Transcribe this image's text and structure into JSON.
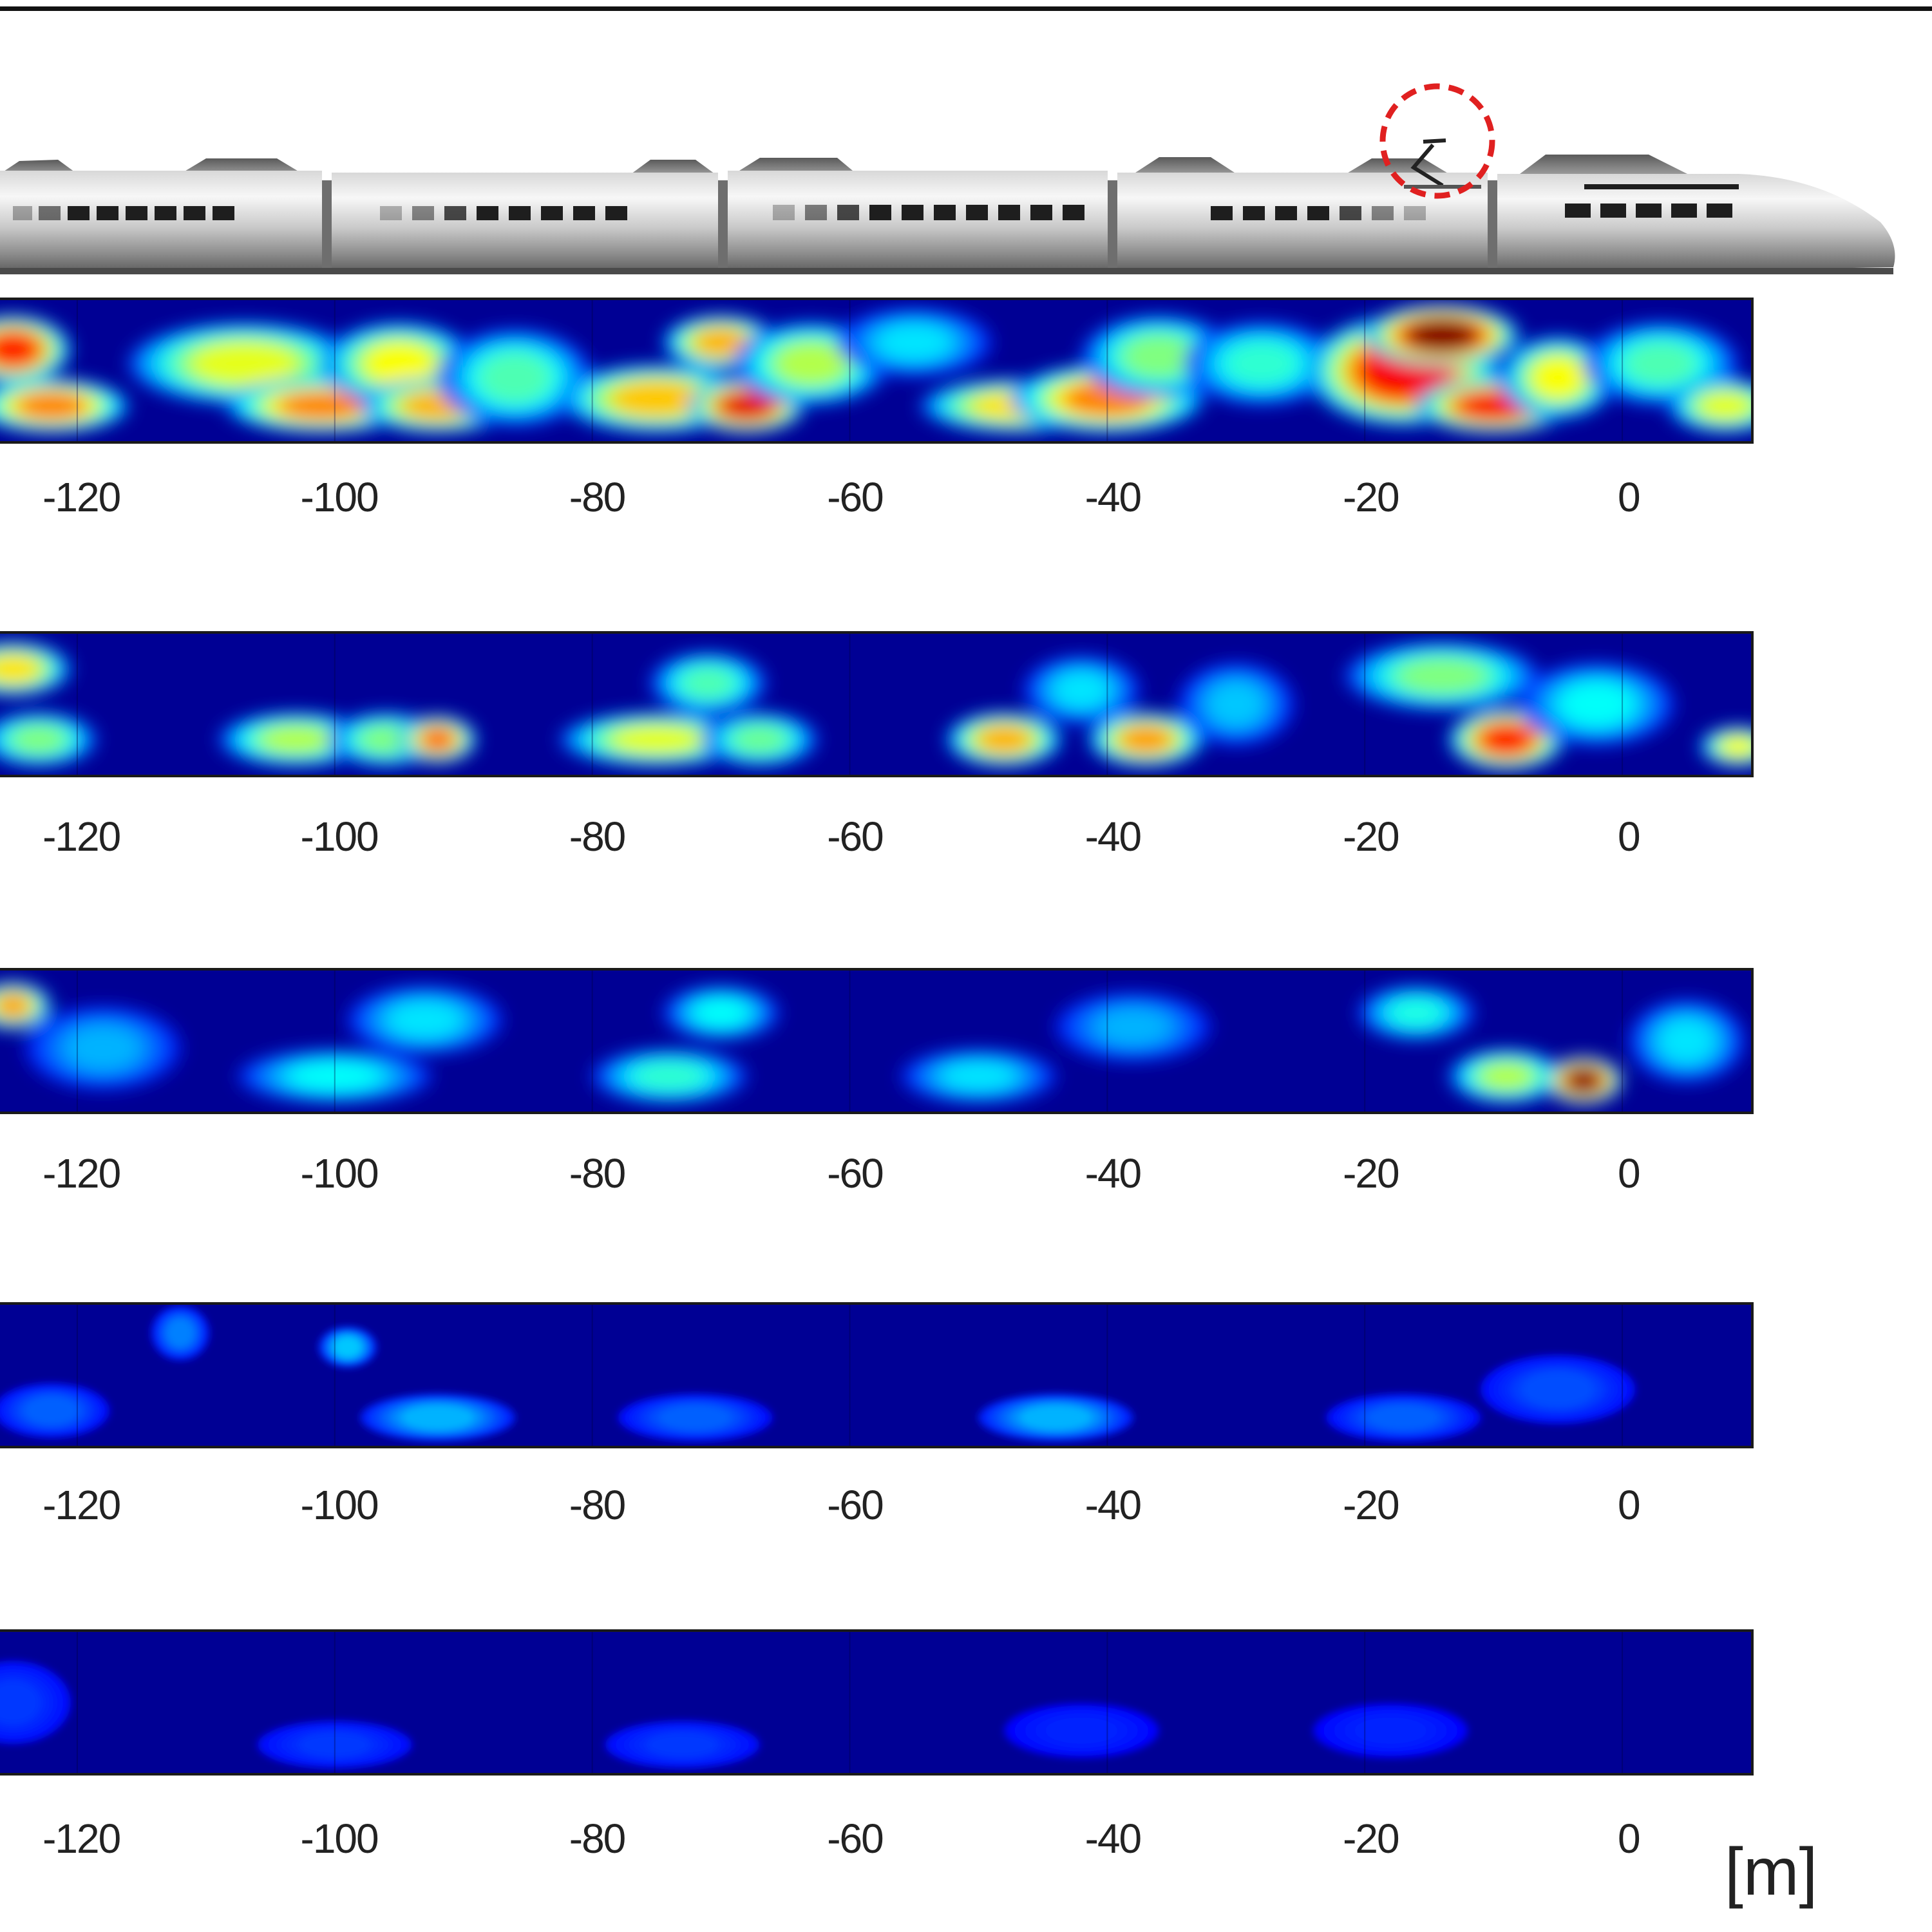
{
  "chart_data": {
    "type": "heatmap",
    "panel_count": 5,
    "x_ticks": [
      -120,
      -100,
      -80,
      -60,
      -40,
      -20,
      0
    ],
    "x_tick_labels": [
      "-120",
      "-100",
      "-80",
      "-60",
      "-40",
      "-20",
      "0"
    ],
    "xlim": [
      -126,
      10
    ],
    "unit_label": "[m]",
    "colormap": "jet",
    "colors": {
      "low": "#00008f",
      "mid": "#00ffff",
      "high": "#800000",
      "highlight_circle": "#e02020"
    },
    "panels": [
      {
        "hotspots": [
          {
            "x": -125,
            "row": 0.35,
            "w": 3,
            "h": 0.4,
            "v": 0.85
          },
          {
            "x": -122,
            "row": 0.75,
            "w": 4,
            "h": 0.3,
            "v": 0.75
          },
          {
            "x": -107,
            "row": 0.45,
            "w": 6,
            "h": 0.5,
            "v": 0.6
          },
          {
            "x": -101,
            "row": 0.75,
            "w": 5,
            "h": 0.3,
            "v": 0.75
          },
          {
            "x": -95,
            "row": 0.45,
            "w": 4,
            "h": 0.5,
            "v": 0.62
          },
          {
            "x": -92,
            "row": 0.75,
            "w": 4,
            "h": 0.3,
            "v": 0.7
          },
          {
            "x": -86,
            "row": 0.55,
            "w": 4,
            "h": 0.6,
            "v": 0.45
          },
          {
            "x": -75,
            "row": 0.7,
            "w": 5,
            "h": 0.4,
            "v": 0.68
          },
          {
            "x": -70,
            "row": 0.3,
            "w": 3,
            "h": 0.3,
            "v": 0.7
          },
          {
            "x": -68,
            "row": 0.75,
            "w": 3,
            "h": 0.3,
            "v": 0.9
          },
          {
            "x": -63,
            "row": 0.45,
            "w": 4,
            "h": 0.5,
            "v": 0.55
          },
          {
            "x": -55,
            "row": 0.3,
            "w": 4,
            "h": 0.4,
            "v": 0.35
          },
          {
            "x": -47,
            "row": 0.75,
            "w": 5,
            "h": 0.3,
            "v": 0.65
          },
          {
            "x": -40,
            "row": 0.7,
            "w": 5,
            "h": 0.4,
            "v": 0.75
          },
          {
            "x": -36,
            "row": 0.4,
            "w": 4,
            "h": 0.5,
            "v": 0.5
          },
          {
            "x": -28,
            "row": 0.45,
            "w": 4,
            "h": 0.5,
            "v": 0.42
          },
          {
            "x": -17,
            "row": 0.5,
            "w": 5,
            "h": 0.7,
            "v": 0.88
          },
          {
            "x": -14,
            "row": 0.25,
            "w": 4,
            "h": 0.35,
            "v": 1.0
          },
          {
            "x": -10,
            "row": 0.75,
            "w": 4,
            "h": 0.3,
            "v": 0.88
          },
          {
            "x": -5,
            "row": 0.55,
            "w": 3,
            "h": 0.5,
            "v": 0.62
          },
          {
            "x": 3,
            "row": 0.45,
            "w": 4,
            "h": 0.5,
            "v": 0.45
          },
          {
            "x": 8,
            "row": 0.75,
            "w": 3,
            "h": 0.3,
            "v": 0.6
          }
        ]
      },
      {
        "hotspots": [
          {
            "x": -125,
            "row": 0.25,
            "w": 3,
            "h": 0.3,
            "v": 0.65
          },
          {
            "x": -123,
            "row": 0.75,
            "w": 3,
            "h": 0.3,
            "v": 0.5
          },
          {
            "x": -103,
            "row": 0.75,
            "w": 4,
            "h": 0.3,
            "v": 0.55
          },
          {
            "x": -96,
            "row": 0.75,
            "w": 3,
            "h": 0.3,
            "v": 0.5
          },
          {
            "x": -92,
            "row": 0.75,
            "w": 2,
            "h": 0.25,
            "v": 0.78
          },
          {
            "x": -75,
            "row": 0.75,
            "w": 5,
            "h": 0.3,
            "v": 0.6
          },
          {
            "x": -71,
            "row": 0.35,
            "w": 3,
            "h": 0.35,
            "v": 0.45
          },
          {
            "x": -67,
            "row": 0.75,
            "w": 3,
            "h": 0.3,
            "v": 0.48
          },
          {
            "x": -48,
            "row": 0.75,
            "w": 3,
            "h": 0.3,
            "v": 0.7
          },
          {
            "x": -42,
            "row": 0.4,
            "w": 3,
            "h": 0.4,
            "v": 0.35
          },
          {
            "x": -37,
            "row": 0.75,
            "w": 3,
            "h": 0.3,
            "v": 0.72
          },
          {
            "x": -30,
            "row": 0.5,
            "w": 3,
            "h": 0.5,
            "v": 0.32
          },
          {
            "x": -14,
            "row": 0.3,
            "w": 5,
            "h": 0.4,
            "v": 0.5
          },
          {
            "x": -9,
            "row": 0.75,
            "w": 3,
            "h": 0.35,
            "v": 0.85
          },
          {
            "x": -2,
            "row": 0.5,
            "w": 4,
            "h": 0.5,
            "v": 0.38
          },
          {
            "x": 9,
            "row": 0.8,
            "w": 2,
            "h": 0.2,
            "v": 0.62
          }
        ]
      },
      {
        "hotspots": [
          {
            "x": -125,
            "row": 0.25,
            "w": 2,
            "h": 0.25,
            "v": 0.72
          },
          {
            "x": -118,
            "row": 0.55,
            "w": 4,
            "h": 0.5,
            "v": 0.3
          },
          {
            "x": -100,
            "row": 0.75,
            "w": 5,
            "h": 0.3,
            "v": 0.38
          },
          {
            "x": -93,
            "row": 0.35,
            "w": 4,
            "h": 0.4,
            "v": 0.35
          },
          {
            "x": -74,
            "row": 0.75,
            "w": 4,
            "h": 0.3,
            "v": 0.42
          },
          {
            "x": -70,
            "row": 0.3,
            "w": 3,
            "h": 0.3,
            "v": 0.38
          },
          {
            "x": -50,
            "row": 0.75,
            "w": 4,
            "h": 0.3,
            "v": 0.35
          },
          {
            "x": -38,
            "row": 0.4,
            "w": 4,
            "h": 0.4,
            "v": 0.3
          },
          {
            "x": -16,
            "row": 0.3,
            "w": 3,
            "h": 0.3,
            "v": 0.4
          },
          {
            "x": -9,
            "row": 0.75,
            "w": 3,
            "h": 0.3,
            "v": 0.55
          },
          {
            "x": -3,
            "row": 0.78,
            "w": 2,
            "h": 0.25,
            "v": 1.0
          },
          {
            "x": 5,
            "row": 0.5,
            "w": 3,
            "h": 0.5,
            "v": 0.35
          }
        ]
      },
      {
        "hotspots": [
          {
            "x": -122,
            "row": 0.75,
            "w": 3,
            "h": 0.3,
            "v": 0.22
          },
          {
            "x": -112,
            "row": 0.2,
            "w": 1.5,
            "h": 0.3,
            "v": 0.25
          },
          {
            "x": -99,
            "row": 0.3,
            "w": 1.5,
            "h": 0.2,
            "v": 0.32
          },
          {
            "x": -92,
            "row": 0.8,
            "w": 4,
            "h": 0.25,
            "v": 0.3
          },
          {
            "x": -72,
            "row": 0.8,
            "w": 4,
            "h": 0.25,
            "v": 0.22
          },
          {
            "x": -44,
            "row": 0.8,
            "w": 4,
            "h": 0.25,
            "v": 0.3
          },
          {
            "x": -17,
            "row": 0.8,
            "w": 4,
            "h": 0.25,
            "v": 0.22
          },
          {
            "x": -5,
            "row": 0.6,
            "w": 4,
            "h": 0.4,
            "v": 0.2
          }
        ]
      },
      {
        "hotspots": [
          {
            "x": -125,
            "row": 0.5,
            "w": 3,
            "h": 0.5,
            "v": 0.18
          },
          {
            "x": -100,
            "row": 0.8,
            "w": 4,
            "h": 0.25,
            "v": 0.18
          },
          {
            "x": -73,
            "row": 0.8,
            "w": 4,
            "h": 0.25,
            "v": 0.18
          },
          {
            "x": -42,
            "row": 0.7,
            "w": 4,
            "h": 0.3,
            "v": 0.16
          },
          {
            "x": -18,
            "row": 0.7,
            "w": 4,
            "h": 0.3,
            "v": 0.16
          }
        ]
      }
    ]
  }
}
